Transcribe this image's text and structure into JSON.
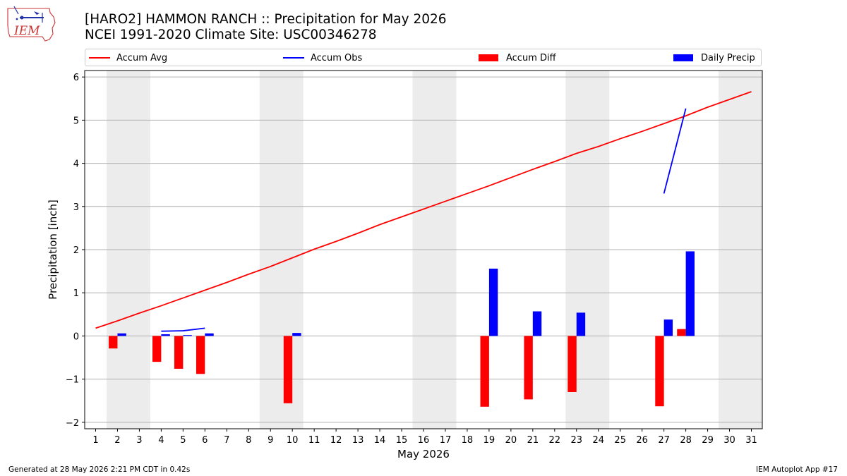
{
  "header": {
    "title_line1": "[HARO2] HAMMON RANCH :: Precipitation for May 2026",
    "title_line2": "NCEI 1991-2020 Climate Site: USC00346278",
    "logo_text": "IEM"
  },
  "footer": {
    "generated": "Generated at 28 May 2026 2:21 PM CDT in 0.42s",
    "app": "IEM Autoplot App #17"
  },
  "legend": {
    "accum_avg": "Accum Avg",
    "accum_obs": "Accum Obs",
    "accum_diff": "Accum Diff",
    "daily_precip": "Daily Precip"
  },
  "colors": {
    "accum_avg": "#ff0000",
    "accum_obs": "#0000ff",
    "accum_diff": "#ff0000",
    "daily_precip": "#0000ff",
    "weekend_shade": "#ececec",
    "grid": "#b0b0b0"
  },
  "chart_data": {
    "type": "bar",
    "xlabel": "May 2026",
    "ylabel": "Precipitation [inch]",
    "xlim": [
      0.5,
      31.5
    ],
    "ylim": [
      -2.15,
      6.15
    ],
    "yticks": [
      -2,
      -1,
      0,
      1,
      2,
      3,
      4,
      5,
      6
    ],
    "xticks": [
      1,
      2,
      3,
      4,
      5,
      6,
      7,
      8,
      9,
      10,
      11,
      12,
      13,
      14,
      15,
      16,
      17,
      18,
      19,
      20,
      21,
      22,
      23,
      24,
      25,
      26,
      27,
      28,
      29,
      30,
      31
    ],
    "grid": "horizontal",
    "legend_position": "top",
    "weekend_shading": [
      [
        1.5,
        3.5
      ],
      [
        8.5,
        10.5
      ],
      [
        15.5,
        17.5
      ],
      [
        22.5,
        24.5
      ],
      [
        29.5,
        31.5
      ]
    ],
    "series": [
      {
        "name": "Accum Avg",
        "kind": "line",
        "x": [
          1,
          2,
          3,
          4,
          5,
          6,
          7,
          8,
          9,
          10,
          11,
          12,
          13,
          14,
          15,
          16,
          17,
          18,
          19,
          20,
          21,
          22,
          23,
          24,
          25,
          26,
          27,
          28,
          29,
          30,
          31
        ],
        "values": [
          0.18,
          0.35,
          0.53,
          0.7,
          0.88,
          1.06,
          1.24,
          1.43,
          1.61,
          1.81,
          2.01,
          2.19,
          2.38,
          2.58,
          2.76,
          2.94,
          3.12,
          3.3,
          3.48,
          3.67,
          3.86,
          4.04,
          4.23,
          4.39,
          4.57,
          4.74,
          4.92,
          5.1,
          5.3,
          5.48,
          5.66
        ]
      },
      {
        "name": "Accum Obs",
        "kind": "line",
        "segments": [
          {
            "x": [
              4,
              5,
              6
            ],
            "values": [
              0.11,
              0.12,
              0.18
            ]
          },
          {
            "x": [
              27,
              28
            ],
            "values": [
              3.3,
              5.27
            ]
          }
        ]
      },
      {
        "name": "Accum Diff",
        "kind": "bar",
        "offset": -0.2,
        "x": [
          2,
          4,
          5,
          6,
          10,
          19,
          21,
          23,
          27,
          28
        ],
        "values": [
          -0.29,
          -0.6,
          -0.76,
          -0.88,
          -1.56,
          -1.64,
          -1.47,
          -1.3,
          -1.63,
          0.16
        ]
      },
      {
        "name": "Daily Precip",
        "kind": "bar",
        "offset": 0.2,
        "x": [
          2,
          4,
          5,
          6,
          10,
          19,
          21,
          23,
          27,
          28
        ],
        "values": [
          0.06,
          0.04,
          0.02,
          0.06,
          0.07,
          1.56,
          0.57,
          0.54,
          0.38,
          1.96
        ]
      }
    ]
  }
}
